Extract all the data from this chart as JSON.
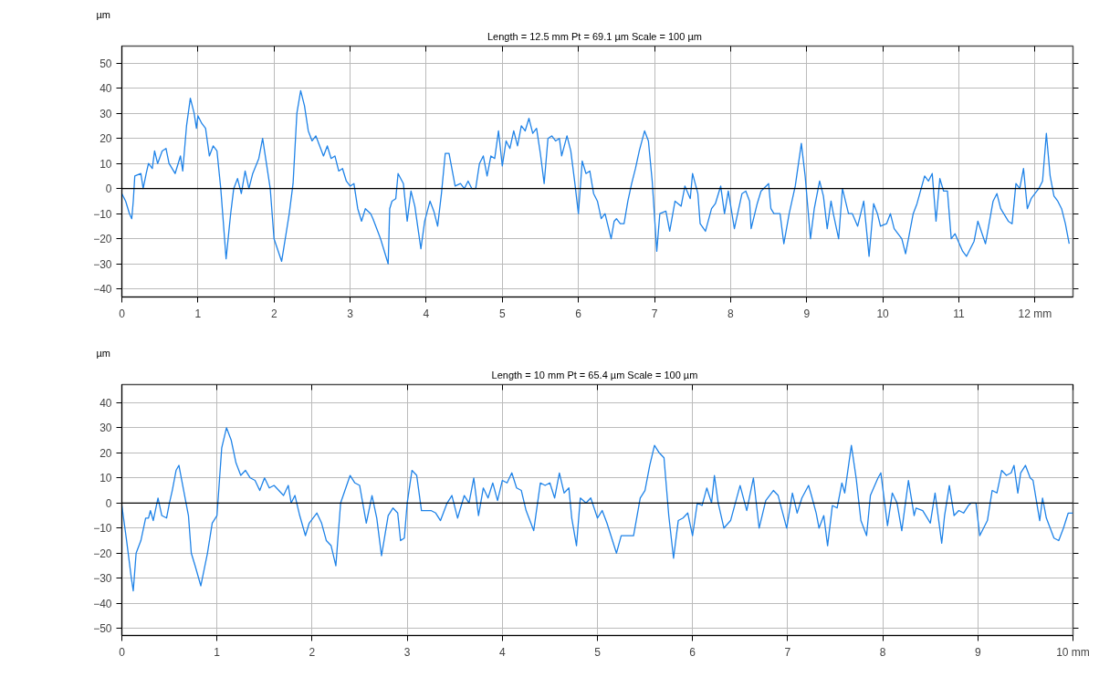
{
  "chart_data": [
    {
      "type": "line",
      "title": "Length = 12.5 mm  Pt = 69.1 µm  Scale = 100 µm",
      "ylabel": "µm",
      "xlim": [
        0,
        12.5
      ],
      "ylim": [
        -43.2,
        56.8
      ],
      "xticks": [
        0,
        1,
        2,
        3,
        4,
        5,
        6,
        7,
        8,
        9,
        10,
        11,
        {
          "value": 12,
          "label": "12 mm"
        }
      ],
      "yticks": [
        -40,
        -30,
        -20,
        -10,
        0,
        10,
        20,
        30,
        40,
        50
      ],
      "grid": true,
      "ref_lines": [
        {
          "axis": "y",
          "value": 0,
          "color": "#000000"
        }
      ],
      "series": [
        {
          "color": "#1f83e8",
          "x": [
            0,
            0.05,
            0.1,
            0.13,
            0.15,
            0.17,
            0.25,
            0.28,
            0.32,
            0.35,
            0.4,
            0.43,
            0.47,
            0.53,
            0.58,
            0.62,
            0.7,
            0.77,
            0.8,
            0.85,
            0.9,
            0.95,
            0.98,
            1.0,
            1.05,
            1.1,
            1.15,
            1.2,
            1.25,
            1.3,
            1.37,
            1.43,
            1.47,
            1.52,
            1.57,
            1.62,
            1.67,
            1.72,
            1.8,
            1.85,
            1.9,
            1.95,
            2.0,
            2.1,
            2.2,
            2.25,
            2.3,
            2.35,
            2.4,
            2.45,
            2.5,
            2.55,
            2.6,
            2.65,
            2.7,
            2.75,
            2.8,
            2.85,
            2.9,
            2.95,
            3.0,
            3.05,
            3.1,
            3.15,
            3.2,
            3.27,
            3.3,
            3.4,
            3.5,
            3.52,
            3.55,
            3.6,
            3.63,
            3.7,
            3.75,
            3.8,
            3.85,
            3.93,
            3.98,
            4.05,
            4.1,
            4.15,
            4.2,
            4.25,
            4.3,
            4.38,
            4.45,
            4.5,
            4.55,
            4.6,
            4.65,
            4.7,
            4.75,
            4.8,
            4.85,
            4.9,
            4.95,
            5.0,
            5.05,
            5.1,
            5.15,
            5.2,
            5.25,
            5.3,
            5.35,
            5.4,
            5.45,
            5.5,
            5.55,
            5.6,
            5.65,
            5.7,
            5.75,
            5.78,
            5.85,
            5.9,
            5.95,
            6.0,
            6.05,
            6.1,
            6.15,
            6.2,
            6.25,
            6.3,
            6.35,
            6.43,
            6.47,
            6.5,
            6.55,
            6.6,
            6.65,
            6.7,
            6.75,
            6.8,
            6.87,
            6.92,
            6.97,
            7.03,
            7.07,
            7.15,
            7.2,
            7.27,
            7.35,
            7.4,
            7.47,
            7.5,
            7.57,
            7.6,
            7.67,
            7.75,
            7.8,
            7.87,
            7.92,
            7.97,
            8.05,
            8.1,
            8.15,
            8.2,
            8.25,
            8.27,
            8.35,
            8.4,
            8.5,
            8.53,
            8.57,
            8.65,
            8.7,
            8.77,
            8.85,
            8.93,
            8.98,
            9.05,
            9.1,
            9.17,
            9.22,
            9.27,
            9.32,
            9.35,
            9.42,
            9.47,
            9.55,
            9.6,
            9.67,
            9.75,
            9.82,
            9.88,
            9.93,
            9.97,
            10.05,
            10.1,
            10.15,
            10.25,
            10.3,
            10.4,
            10.45,
            10.55,
            10.6,
            10.65,
            10.7,
            10.75,
            10.8,
            10.85,
            10.9,
            10.95,
            11.05,
            11.1,
            11.2,
            11.25,
            11.35,
            11.45,
            11.5,
            11.55,
            11.65,
            11.7,
            11.75,
            11.8,
            11.85,
            11.9,
            11.95,
            12.05,
            12.1,
            12.15,
            12.2,
            12.25,
            12.3,
            12.35,
            12.4,
            12.45
          ],
          "values": [
            -2,
            -5,
            -10,
            -12,
            -5,
            5,
            6,
            0,
            6,
            10,
            8,
            15,
            10,
            15,
            16,
            10,
            6,
            13,
            7,
            25,
            36,
            30,
            24,
            29,
            26,
            24,
            13,
            17,
            15,
            0,
            -28,
            -10,
            0,
            4,
            -2,
            7,
            0,
            6,
            12,
            20,
            10,
            0,
            -20,
            -29,
            -10,
            2,
            30,
            39,
            33,
            23,
            19,
            21,
            17,
            13,
            17,
            12,
            13,
            7,
            8,
            3,
            1,
            2,
            -8,
            -13,
            -8,
            -10,
            -12,
            -20,
            -30,
            -8,
            -5,
            -4,
            6,
            2,
            -13,
            -1,
            -7,
            -24,
            -13,
            -5,
            -9,
            -15,
            -2,
            14,
            14,
            1,
            2,
            0,
            3,
            0,
            0,
            10,
            13,
            5,
            13,
            12,
            23,
            9,
            19,
            16,
            23,
            17,
            25,
            23,
            28,
            22,
            24,
            14,
            2,
            20,
            21,
            19,
            20,
            13,
            21,
            15,
            3,
            -10,
            11,
            6,
            7,
            -2,
            -5,
            -12,
            -10,
            -20,
            -13,
            -12,
            -14,
            -14,
            -5,
            2,
            8,
            15,
            23,
            19,
            3,
            -25,
            -10,
            -9,
            -17,
            -5,
            -7,
            1,
            -4,
            6,
            -2,
            -14,
            -17,
            -8,
            -6,
            1,
            -10,
            -1,
            -16,
            -9,
            -2,
            -1,
            -5,
            -16,
            -6,
            -1,
            2,
            -8,
            -10,
            -10,
            -22,
            -10,
            1,
            18,
            5,
            -20,
            -8,
            3,
            -3,
            -16,
            -5,
            -10,
            -20,
            0,
            -10,
            -10,
            -15,
            -5,
            -27,
            -6,
            -10,
            -15,
            -14,
            -10,
            -16,
            -20,
            -26,
            -10,
            -6,
            5,
            3,
            6,
            -13,
            4,
            -1,
            -1,
            -20,
            -18,
            -25,
            -27,
            -21,
            -13,
            -22,
            -5,
            -2,
            -8,
            -13,
            -14,
            2,
            0,
            8,
            -8,
            -4,
            0,
            3,
            22,
            5,
            -3,
            -5,
            -8,
            -14,
            -22
          ]
        }
      ]
    },
    {
      "type": "line",
      "title": "Length = 10 mm  Pt = 65.4 µm  Scale = 100 µm",
      "ylabel": "µm",
      "xlim": [
        0,
        10
      ],
      "ylim": [
        -52.8,
        47.2
      ],
      "xticks": [
        0,
        1,
        2,
        3,
        4,
        5,
        6,
        7,
        8,
        9,
        {
          "value": 10,
          "label": "10 mm"
        }
      ],
      "yticks": [
        -50,
        -40,
        -30,
        -20,
        -10,
        0,
        10,
        20,
        30,
        40
      ],
      "grid": true,
      "ref_lines": [
        {
          "axis": "y",
          "value": 0,
          "color": "#000000"
        }
      ],
      "series": [
        {
          "color": "#1f83e8",
          "x": [
            0,
            0.05,
            0.1,
            0.12,
            0.15,
            0.2,
            0.25,
            0.28,
            0.3,
            0.33,
            0.38,
            0.42,
            0.47,
            0.5,
            0.53,
            0.57,
            0.6,
            0.65,
            0.7,
            0.73,
            0.77,
            0.83,
            0.9,
            0.95,
            1.0,
            1.05,
            1.1,
            1.15,
            1.2,
            1.25,
            1.3,
            1.35,
            1.4,
            1.45,
            1.5,
            1.55,
            1.6,
            1.7,
            1.75,
            1.78,
            1.82,
            1.87,
            1.93,
            1.97,
            2.05,
            2.1,
            2.15,
            2.2,
            2.25,
            2.3,
            2.4,
            2.45,
            2.5,
            2.57,
            2.63,
            2.68,
            2.73,
            2.8,
            2.85,
            2.9,
            2.93,
            2.97,
            3.0,
            3.05,
            3.1,
            3.15,
            3.25,
            3.3,
            3.35,
            3.42,
            3.47,
            3.53,
            3.6,
            3.65,
            3.7,
            3.75,
            3.8,
            3.85,
            3.9,
            3.95,
            4.0,
            4.05,
            4.1,
            4.15,
            4.2,
            4.25,
            4.3,
            4.33,
            4.4,
            4.45,
            4.5,
            4.55,
            4.6,
            4.65,
            4.7,
            4.73,
            4.78,
            4.82,
            4.88,
            4.93,
            5.0,
            5.05,
            5.1,
            5.2,
            5.25,
            5.3,
            5.38,
            5.45,
            5.5,
            5.55,
            5.6,
            5.65,
            5.7,
            5.75,
            5.8,
            5.85,
            5.9,
            5.95,
            6.0,
            6.05,
            6.1,
            6.15,
            6.2,
            6.23,
            6.27,
            6.33,
            6.4,
            6.5,
            6.57,
            6.64,
            6.7,
            6.77,
            6.85,
            6.9,
            6.99,
            7.05,
            7.1,
            7.15,
            7.22,
            7.25,
            7.3,
            7.33,
            7.38,
            7.42,
            7.47,
            7.52,
            7.57,
            7.6,
            7.67,
            7.72,
            7.77,
            7.83,
            7.87,
            7.95,
            7.98,
            8.05,
            8.1,
            8.15,
            8.2,
            8.27,
            8.33,
            8.35,
            8.42,
            8.5,
            8.55,
            8.62,
            8.65,
            8.7,
            8.75,
            8.8,
            8.85,
            8.9,
            8.93,
            8.98,
            9.02,
            9.1,
            9.15,
            9.2,
            9.25,
            9.3,
            9.35,
            9.38,
            9.42,
            9.45,
            9.5,
            9.55,
            9.58,
            9.65,
            9.68,
            9.72,
            9.8,
            9.85,
            9.9,
            9.95,
            10.0
          ],
          "values": [
            -1,
            -15,
            -30,
            -35,
            -20,
            -15,
            -6,
            -6,
            -3,
            -7,
            2,
            -5,
            -6,
            0,
            5,
            13,
            15,
            5,
            -5,
            -20,
            -25,
            -33,
            -20,
            -8,
            -5,
            22,
            30,
            25,
            16,
            11,
            13,
            10,
            9,
            5,
            10,
            6,
            7,
            3,
            7,
            0,
            3,
            -5,
            -13,
            -8,
            -4,
            -8,
            -15,
            -17,
            -25,
            0,
            11,
            8,
            7,
            -8,
            3,
            -6,
            -21,
            -5,
            -2,
            -4,
            -15,
            -14,
            0,
            13,
            11,
            -3,
            -3,
            -4,
            -7,
            0,
            3,
            -6,
            3,
            0,
            10,
            -5,
            6,
            2,
            8,
            1,
            9,
            8,
            12,
            6,
            5,
            -3,
            -8,
            -11,
            8,
            7,
            8,
            2,
            12,
            4,
            6,
            -6,
            -17,
            2,
            0,
            2,
            -6,
            -3,
            -8,
            -20,
            -13,
            -13,
            -13,
            2,
            5,
            15,
            23,
            20,
            18,
            -5,
            -22,
            -7,
            -6,
            -4,
            -13,
            0,
            -1,
            6,
            0,
            11,
            0,
            -10,
            -7,
            7,
            -3,
            10,
            -10,
            1,
            5,
            3,
            -10,
            4,
            -4,
            2,
            7,
            3,
            -4,
            -10,
            -5,
            -17,
            -1,
            -2,
            8,
            4,
            23,
            10,
            -7,
            -13,
            3,
            10,
            12,
            -9,
            4,
            0,
            -11,
            9,
            -5,
            -2,
            -3,
            -8,
            4,
            -16,
            -5,
            7,
            -5,
            -3,
            -4,
            -1,
            0,
            0,
            -13,
            -7,
            5,
            4,
            13,
            11,
            12,
            15,
            4,
            12,
            15,
            10,
            9,
            -7,
            2,
            -6,
            -14,
            -15,
            -10,
            -4,
            -4
          ]
        }
      ]
    }
  ]
}
